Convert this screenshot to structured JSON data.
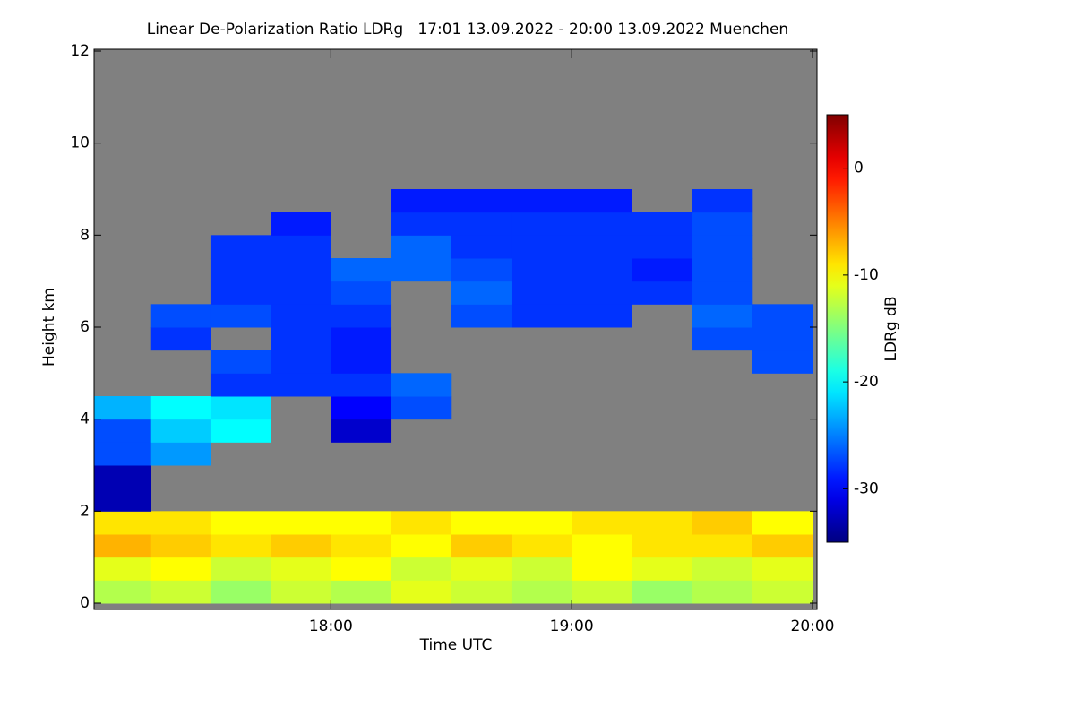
{
  "chart_data": {
    "type": "heatmap",
    "title": "Linear De-Polarization Ratio LDRg   17:01 13.09.2022 - 20:00 13.09.2022 Muenchen",
    "x_label": "Time UTC",
    "y_label": "Height km",
    "colorbar_label": "LDRg dB",
    "xlim": [
      17.0167,
      20.0
    ],
    "xticks": [
      {
        "value": 18,
        "label": "18:00"
      },
      {
        "value": 19,
        "label": "19:00"
      },
      {
        "value": 20,
        "label": "20:00"
      }
    ],
    "ylim": [
      0,
      12
    ],
    "yticks": [
      0,
      2,
      4,
      6,
      8,
      10,
      12
    ],
    "zlim": [
      -35,
      5
    ],
    "zticks": [
      0,
      -10,
      -20,
      -30
    ],
    "colormap": "jet",
    "background": "#808080",
    "x": [
      17.125,
      17.375,
      17.625,
      17.875,
      18.125,
      18.375,
      18.625,
      18.875,
      19.125,
      19.375,
      19.625,
      19.875
    ],
    "y": [
      0.25,
      0.75,
      1.25,
      1.75,
      2.25,
      2.75,
      3.25,
      3.75,
      4.25,
      4.75,
      5.25,
      5.75,
      6.25,
      6.75,
      7.25,
      7.75,
      8.25,
      8.75,
      9.25,
      9.75,
      10.25,
      10.75,
      11.25,
      11.75
    ],
    "z": [
      [
        -13,
        -12,
        -14,
        -12,
        -13,
        -11,
        -12,
        -13,
        -12,
        -14,
        -13,
        -12
      ],
      [
        -11,
        -10,
        -12,
        -11,
        -10,
        -12,
        -11,
        -12,
        -10,
        -11,
        -12,
        -11
      ],
      [
        -7,
        -8,
        -9,
        -8,
        -9,
        -10,
        -8,
        -9,
        -10,
        -9,
        -9,
        -8
      ],
      [
        -9,
        -9,
        -10,
        -10,
        -10,
        -9,
        -10,
        -10,
        -9,
        -9,
        -8,
        -10
      ],
      [
        -33,
        null,
        null,
        null,
        null,
        null,
        null,
        null,
        null,
        null,
        null,
        null
      ],
      [
        -33,
        null,
        null,
        null,
        null,
        null,
        null,
        null,
        null,
        null,
        null,
        null
      ],
      [
        -27,
        -24,
        null,
        null,
        null,
        null,
        null,
        null,
        null,
        null,
        null,
        null
      ],
      [
        -27,
        -22,
        -20,
        null,
        -32,
        null,
        null,
        null,
        null,
        null,
        null,
        null
      ],
      [
        -23,
        -20,
        -21,
        null,
        -30,
        -27,
        null,
        null,
        null,
        null,
        null,
        null
      ],
      [
        null,
        null,
        -28,
        -28,
        -28,
        -26,
        null,
        null,
        null,
        null,
        null,
        null
      ],
      [
        null,
        null,
        -27,
        -28,
        -29,
        null,
        null,
        null,
        null,
        null,
        null,
        -27
      ],
      [
        null,
        -28,
        null,
        -28,
        -29,
        null,
        null,
        null,
        null,
        null,
        -27,
        -27
      ],
      [
        null,
        -27,
        -27,
        -28,
        -28,
        null,
        -27,
        -28,
        -28,
        null,
        -26,
        -27
      ],
      [
        null,
        null,
        -28,
        -28,
        -27,
        null,
        -26,
        -28,
        -28,
        -28,
        -27,
        null
      ],
      [
        null,
        null,
        -28,
        -28,
        -26,
        -26,
        -27,
        -28,
        -28,
        -29,
        -27,
        null
      ],
      [
        null,
        null,
        -28,
        -28,
        null,
        -26,
        -28,
        -28,
        -28,
        -28,
        -27,
        null
      ],
      [
        null,
        null,
        null,
        -29,
        null,
        -28,
        -28,
        -28,
        -28,
        -28,
        -27,
        null
      ],
      [
        null,
        null,
        null,
        null,
        null,
        -29,
        -29,
        -29,
        -29,
        null,
        -28,
        null
      ],
      [
        null,
        null,
        null,
        null,
        null,
        null,
        null,
        null,
        null,
        null,
        null,
        null
      ],
      [
        null,
        null,
        null,
        null,
        null,
        null,
        null,
        null,
        null,
        null,
        null,
        null
      ],
      [
        null,
        null,
        null,
        null,
        null,
        null,
        null,
        null,
        null,
        null,
        null,
        null
      ],
      [
        null,
        null,
        null,
        null,
        null,
        null,
        null,
        null,
        null,
        null,
        null,
        null
      ],
      [
        null,
        null,
        null,
        null,
        null,
        null,
        null,
        null,
        null,
        null,
        null,
        null
      ],
      [
        null,
        null,
        null,
        null,
        null,
        null,
        null,
        null,
        null,
        null,
        null,
        null
      ]
    ]
  }
}
